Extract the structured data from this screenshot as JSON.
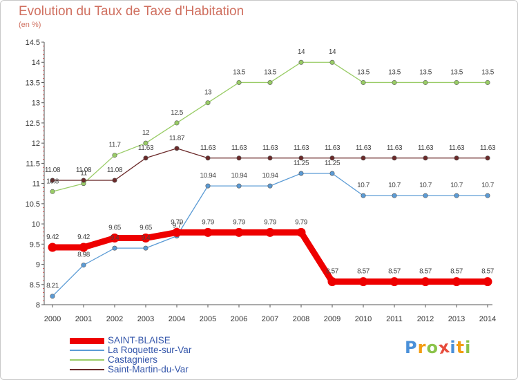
{
  "chart_data": {
    "type": "line",
    "title": "Evolution du Taux de Taxe d'Habitation",
    "subtitle": "(en %)",
    "xlabel": "",
    "ylabel": "",
    "ylim": [
      8,
      14.5
    ],
    "y_ticks": [
      "8",
      "8.5",
      "9",
      "9.5",
      "10",
      "10.5",
      "11",
      "11.5",
      "12",
      "12.5",
      "13",
      "13.5",
      "14",
      "14.5"
    ],
    "categories": [
      "2000",
      "2001",
      "2002",
      "2003",
      "2004",
      "2005",
      "2006",
      "2007",
      "2008",
      "2009",
      "2010",
      "2011",
      "2012",
      "2013",
      "2014"
    ],
    "grid": false,
    "legend_position": "bottom-left",
    "series": [
      {
        "name": "Castagniers",
        "color": "#99cc66",
        "values": [
          10.8,
          11,
          11.7,
          12,
          12.5,
          13,
          13.5,
          13.5,
          14,
          14,
          13.5,
          13.5,
          13.5,
          13.5,
          13.5
        ],
        "labels": [
          "10.8",
          "11",
          "11.7",
          "12",
          "12.5",
          "13",
          "13.5",
          "13.5",
          "14",
          "14",
          "13.5",
          "13.5",
          "13.5",
          "13.5",
          "13.5"
        ]
      },
      {
        "name": "Saint-Martin-du-Var",
        "color": "#6b2a2a",
        "values": [
          11.08,
          11.08,
          11.08,
          11.63,
          11.87,
          11.63,
          11.63,
          11.63,
          11.63,
          11.63,
          11.63,
          11.63,
          11.63,
          11.63,
          11.63
        ],
        "labels": [
          "11.08",
          "11.08",
          "11.08",
          "11.63",
          "11.87",
          "11.63",
          "11.63",
          "11.63",
          "11.63",
          "11.63",
          "11.63",
          "11.63",
          "11.63",
          "11.63",
          "11.63"
        ]
      },
      {
        "name": "La Roquette-sur-Var",
        "color": "#5b9bd5",
        "values": [
          8.21,
          8.98,
          9.4,
          9.4,
          9.7,
          10.94,
          10.94,
          10.94,
          11.25,
          11.25,
          10.7,
          10.7,
          10.7,
          10.7,
          10.7
        ],
        "labels": [
          "8.21",
          "8.98",
          "9.4",
          "9.4",
          "9.7",
          "10.94",
          "10.94",
          "10.94",
          "11.25",
          "11.25",
          "10.7",
          "10.7",
          "10.7",
          "10.7",
          "10.7"
        ]
      },
      {
        "name": "SAINT-BLAISE",
        "color": "#ee0000",
        "values": [
          9.42,
          9.42,
          9.65,
          9.65,
          9.79,
          9.79,
          9.79,
          9.79,
          9.79,
          8.57,
          8.57,
          8.57,
          8.57,
          8.57,
          8.57
        ],
        "labels": [
          "9.42",
          "9.42",
          "9.65",
          "9.65",
          "9.79",
          "9.79",
          "9.79",
          "9.79",
          "9.79",
          "8.57",
          "8.57",
          "8.57",
          "8.57",
          "8.57",
          "8.57"
        ]
      }
    ]
  },
  "legend": {
    "items": [
      {
        "name": "SAINT-BLAISE",
        "color": "#ee0000",
        "style": "thick"
      },
      {
        "name": "La Roquette-sur-Var",
        "color": "#5b9bd5",
        "style": "thin"
      },
      {
        "name": "Castagniers",
        "color": "#99cc66",
        "style": "thin"
      },
      {
        "name": "Saint-Martin-du-Var",
        "color": "#6b2a2a",
        "style": "thin"
      }
    ]
  },
  "logo": {
    "text": "Proxiti",
    "letters": [
      {
        "char": "P",
        "color": "#4a90d9"
      },
      {
        "char": "r",
        "color": "#f39c12"
      },
      {
        "char": "o",
        "color": "#8bc34a"
      },
      {
        "char": "x",
        "color": "#e74c3c"
      },
      {
        "char": "i",
        "color": "#4a90d9"
      },
      {
        "char": "t",
        "color": "#f39c12"
      },
      {
        "char": "i",
        "color": "#8bc34a"
      }
    ]
  }
}
